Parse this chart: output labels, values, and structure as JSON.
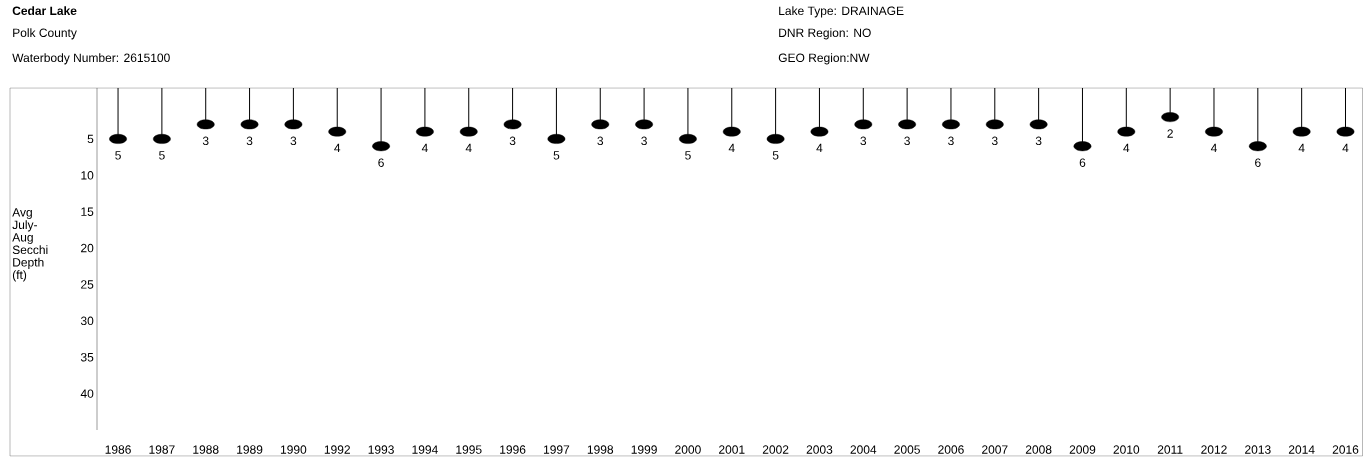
{
  "chart_data": {
    "type": "lollipop",
    "title": "Cedar Lake",
    "subtitle": "Polk County",
    "annotations": [
      "Waterbody Number: 2615100",
      "Lake Type: DRAINAGE",
      "DNR Region: NO",
      "GEO Region:NW"
    ],
    "ylabel": "Avg July-Aug Secchi Depth (ft)",
    "categories": [
      "1986",
      "1987",
      "1988",
      "1989",
      "1990",
      "1992",
      "1993",
      "1994",
      "1995",
      "1996",
      "1997",
      "1998",
      "1999",
      "2000",
      "2001",
      "2002",
      "2003",
      "2004",
      "2005",
      "2006",
      "2007",
      "2008",
      "2009",
      "2010",
      "2011",
      "2012",
      "2013",
      "2014",
      "2016"
    ],
    "values": [
      5,
      5,
      3,
      3,
      3,
      4,
      6,
      4,
      4,
      3,
      5,
      3,
      3,
      5,
      4,
      5,
      4,
      3,
      3,
      3,
      3,
      3,
      6,
      4,
      2,
      4,
      6,
      4,
      4
    ],
    "color": "#000000",
    "ylim": [
      45,
      -2
    ],
    "yticks": [
      5,
      10,
      15,
      20,
      25,
      30,
      35,
      40
    ],
    "data_labels": true,
    "marker": "circle",
    "line_style": "solid",
    "grid": false
  }
}
